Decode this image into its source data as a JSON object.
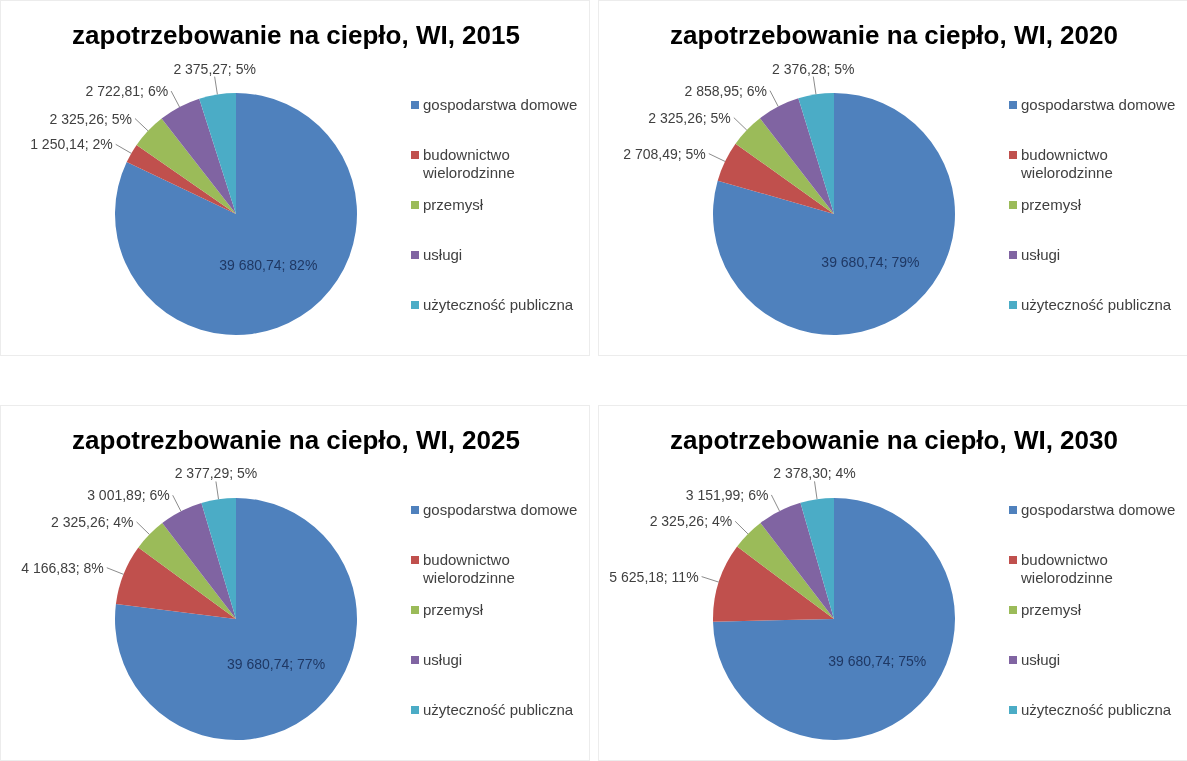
{
  "chart_data": [
    {
      "type": "pie",
      "title": "zapotrzebowanie na ciepło, WI, 2015",
      "categories": [
        "gospodarstwa domowe",
        "budownictwo wielorodzinne",
        "przemysł",
        "usługi",
        "użyteczność publiczna"
      ],
      "values": [
        39680.74,
        1250.14,
        2325.26,
        2722.81,
        2375.27
      ],
      "colors": [
        "#4f81bd",
        "#c0504d",
        "#9bbb59",
        "#8064a2",
        "#4bacc6"
      ],
      "value_labels": [
        "39 680,74; 82%",
        "1 250,14; 2%",
        "2 325,26; 5%",
        "2 722,81; 6%",
        "2 375,27; 5%"
      ],
      "legend": "right"
    },
    {
      "type": "pie",
      "title": "zapotrzebowanie na ciepło, WI, 2020",
      "categories": [
        "gospodarstwa domowe",
        "budownictwo wielorodzinne",
        "przemysł",
        "usługi",
        "użyteczność publiczna"
      ],
      "values": [
        39680.74,
        2708.49,
        2325.26,
        2858.95,
        2376.28
      ],
      "colors": [
        "#4f81bd",
        "#c0504d",
        "#9bbb59",
        "#8064a2",
        "#4bacc6"
      ],
      "value_labels": [
        "39 680,74; 79%",
        "2 708,49; 5%",
        "2 325,26; 5%",
        "2 858,95; 6%",
        "2 376,28; 5%"
      ],
      "legend": "right"
    },
    {
      "type": "pie",
      "title": "zapotrezbowanie na ciepło, WI, 2025",
      "categories": [
        "gospodarstwa domowe",
        "budownictwo wielorodzinne",
        "przemysł",
        "usługi",
        "użyteczność publiczna"
      ],
      "values": [
        39680.74,
        4166.83,
        2325.26,
        3001.89,
        2377.29
      ],
      "colors": [
        "#4f81bd",
        "#c0504d",
        "#9bbb59",
        "#8064a2",
        "#4bacc6"
      ],
      "value_labels": [
        "39 680,74; 77%",
        "4 166,83; 8%",
        "2 325,26; 4%",
        "3 001,89; 6%",
        "2 377,29; 5%"
      ],
      "legend": "right"
    },
    {
      "type": "pie",
      "title": "zapotrzebowanie na ciepło, WI, 2030",
      "categories": [
        "gospodarstwa domowe",
        "budownictwo wielorodzinne",
        "przemysł",
        "usługi",
        "użyteczność publiczna"
      ],
      "values": [
        39680.74,
        5625.18,
        2325.26,
        3151.99,
        2378.3
      ],
      "colors": [
        "#4f81bd",
        "#c0504d",
        "#9bbb59",
        "#8064a2",
        "#4bacc6"
      ],
      "value_labels": [
        "39 680,74; 75%",
        "5 625,18; 11%",
        "2 325,26; 4%",
        "3 151,99; 6%",
        "2 378,30; 4%"
      ],
      "legend": "right"
    }
  ]
}
